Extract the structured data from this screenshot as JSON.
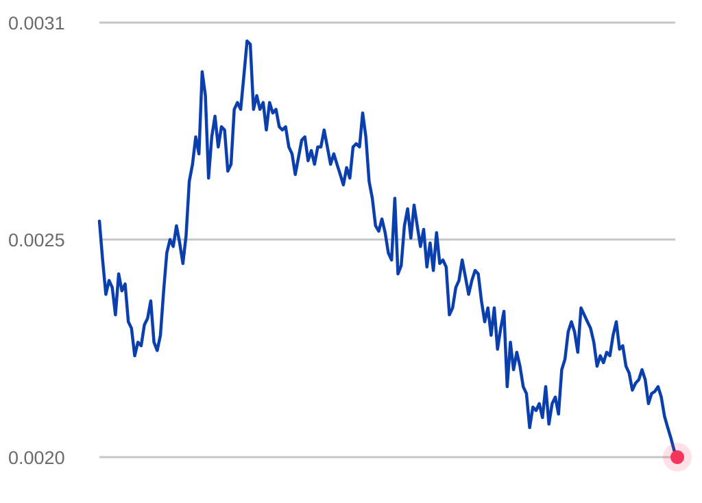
{
  "chart_data": {
    "type": "line",
    "title": "",
    "xlabel": "",
    "ylabel": "",
    "grid": true,
    "y_ticks": [
      0.002,
      0.0025,
      0.0031
    ],
    "y_tick_labels": [
      "0.0020",
      "0.0025",
      "0.0031"
    ],
    "line_color": "#0b3fae",
    "end_marker_color": "#f5365c",
    "series": [
      {
        "values": [
          0.002551,
          0.002453,
          0.002374,
          0.002406,
          0.00239,
          0.002327,
          0.002421,
          0.002382,
          0.002398,
          0.002311,
          0.002296,
          0.002233,
          0.002264,
          0.002256,
          0.002304,
          0.002319,
          0.002359,
          0.002264,
          0.002245,
          0.00228,
          0.002382,
          0.002469,
          0.0025,
          0.002484,
          0.002538,
          0.002492,
          0.002445,
          0.00251,
          0.002661,
          0.002708,
          0.002784,
          0.002737,
          0.002964,
          0.002898,
          0.00267,
          0.002784,
          0.002841,
          0.002756,
          0.002812,
          0.002803,
          0.002689,
          0.002708,
          0.00286,
          0.002879,
          0.00286,
          0.002954,
          0.003049,
          0.00304,
          0.00286,
          0.002898,
          0.00286,
          0.002879,
          0.002803,
          0.002879,
          0.00285,
          0.00286,
          0.002812,
          0.002803,
          0.002812,
          0.002756,
          0.002737,
          0.00268,
          0.002727,
          0.002775,
          0.002784,
          0.002718,
          0.002746,
          0.002708,
          0.002756,
          0.002756,
          0.002803,
          0.002756,
          0.002708,
          0.002737,
          0.002708,
          0.00268,
          0.002651,
          0.002699,
          0.00267,
          0.002756,
          0.002765,
          0.002756,
          0.00285,
          0.002784,
          0.002661,
          0.002614,
          0.002538,
          0.002523,
          0.002557,
          0.002519,
          0.002469,
          0.002453,
          0.002614,
          0.002421,
          0.00244,
          0.002538,
          0.002585,
          0.002504,
          0.002595,
          0.002538,
          0.002484,
          0.002528,
          0.002437,
          0.002492,
          0.002429,
          0.002519,
          0.002445,
          0.002453,
          0.002437,
          0.002327,
          0.002343,
          0.00239,
          0.002406,
          0.002453,
          0.002414,
          0.002374,
          0.002406,
          0.002429,
          0.002421,
          0.002359,
          0.002311,
          0.002343,
          0.00228,
          0.002343,
          0.002248,
          0.002296,
          0.002335,
          0.002162,
          0.002264,
          0.002201,
          0.002241,
          0.002209,
          0.002162,
          0.002146,
          0.002068,
          0.002115,
          0.002107,
          0.002123,
          0.002091,
          0.002162,
          0.002076,
          0.002123,
          0.002138,
          0.002099,
          0.002201,
          0.002225,
          0.002288,
          0.002311,
          0.002288,
          0.002241,
          0.002343,
          0.002327,
          0.002311,
          0.002296,
          0.002264,
          0.002209,
          0.002233,
          0.002217,
          0.002241,
          0.002233,
          0.00228,
          0.002311,
          0.002248,
          0.002256,
          0.002209,
          0.002193,
          0.002154,
          0.00217,
          0.002178,
          0.002201,
          0.002178,
          0.002123,
          0.002146,
          0.002151,
          0.002162,
          0.002138,
          0.002094,
          0.002068,
          0.002044,
          0.002016,
          0.002
        ]
      }
    ]
  }
}
